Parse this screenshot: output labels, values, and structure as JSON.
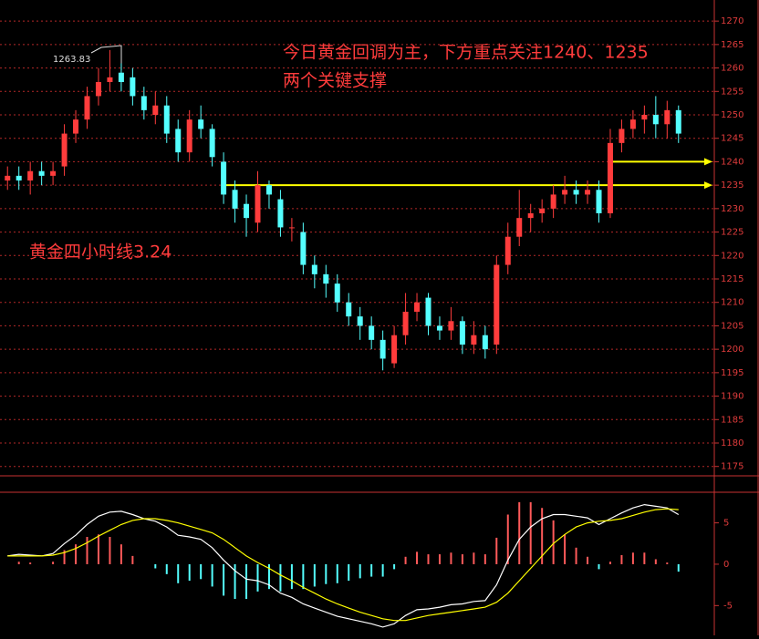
{
  "chart_data": [
    {
      "type": "candlestick",
      "title": "黄金四小时线3.24",
      "annotations": [
        "今日黄金回调为主，下方重点关注1240、1235",
        "两个关键支撑",
        "1263.83"
      ],
      "open": [
        1236,
        1237,
        1236,
        1238,
        1237,
        1239,
        1246,
        1249,
        1254,
        1257,
        1259,
        1258,
        1254,
        1250,
        1252,
        1247,
        1242,
        1249,
        1247,
        1240,
        1234,
        1231,
        1227,
        1235,
        1232,
        1226,
        1225,
        1218,
        1216,
        1214,
        1210,
        1207,
        1205,
        1202,
        1197,
        1203,
        1208,
        1211,
        1205,
        1204,
        1206,
        1201,
        1203,
        1201,
        1218,
        1224,
        1228,
        1229,
        1230,
        1233,
        1234,
        1233,
        1234,
        1229,
        1244,
        1247,
        1249,
        1250,
        1248,
        1251
      ],
      "high": [
        1239,
        1239,
        1240,
        1240,
        1240,
        1248,
        1251,
        1256,
        1260,
        1263.83,
        1261,
        1260,
        1256,
        1255,
        1254,
        1249,
        1251,
        1252,
        1248,
        1242,
        1236,
        1233,
        1238,
        1236,
        1234,
        1228,
        1227,
        1220,
        1218,
        1216,
        1212,
        1209,
        1207,
        1204,
        1205,
        1212,
        1212,
        1212,
        1207,
        1209,
        1207,
        1206,
        1205,
        1220,
        1227,
        1234,
        1231,
        1232,
        1235,
        1237,
        1236,
        1236,
        1236,
        1247,
        1249,
        1251,
        1252,
        1254,
        1253,
        1252
      ],
      "low": [
        1234,
        1234,
        1233,
        1235,
        1235,
        1237,
        1244,
        1247,
        1252,
        1255,
        1255,
        1252,
        1249,
        1248,
        1244,
        1240,
        1240,
        1245,
        1239,
        1231,
        1227,
        1224,
        1225,
        1230,
        1224,
        1223,
        1216,
        1213,
        1211,
        1208,
        1205,
        1202,
        1200,
        1195.5,
        1196,
        1201,
        1206,
        1203,
        1202,
        1202,
        1199,
        1199,
        1198,
        1199,
        1216,
        1222,
        1225,
        1227,
        1228,
        1231,
        1231,
        1231,
        1227,
        1228,
        1242,
        1245,
        1246,
        1245,
        1245,
        1244
      ],
      "close": [
        1237,
        1236,
        1238,
        1237,
        1238,
        1246,
        1249,
        1254,
        1257,
        1258,
        1257,
        1254,
        1251,
        1252,
        1246,
        1242,
        1249,
        1247,
        1241,
        1233,
        1230,
        1228,
        1235,
        1233,
        1226,
        1226,
        1218,
        1216,
        1214,
        1210,
        1207,
        1205,
        1202,
        1198,
        1203,
        1208,
        1210,
        1205,
        1204,
        1206,
        1201,
        1203,
        1200,
        1218,
        1224,
        1228,
        1229,
        1230,
        1233,
        1234,
        1233,
        1234,
        1229,
        1244,
        1247,
        1249,
        1250,
        1248,
        1251,
        1246
      ],
      "up_color": "#ff3c3c",
      "down_color": "#54ffff",
      "levels": [
        1240,
        1235
      ],
      "level_color": "#ffff00",
      "ylim": [
        1173,
        1274.5
      ],
      "yticks": [
        1175,
        1180,
        1185,
        1190,
        1195,
        1200,
        1205,
        1210,
        1215,
        1220,
        1225,
        1230,
        1235,
        1240,
        1245,
        1250,
        1255,
        1260,
        1265,
        1270
      ],
      "grid": true
    },
    {
      "type": "macd",
      "series": [
        {
          "name": "DIF",
          "color": "#ffffff",
          "values": [
            1,
            1.2,
            1.1,
            1,
            1.3,
            2.5,
            3.5,
            4.8,
            5.8,
            6.3,
            6.4,
            6,
            5.5,
            5.2,
            4.5,
            3.5,
            3.3,
            3,
            2,
            0.5,
            -0.8,
            -1.8,
            -2,
            -2.5,
            -3.5,
            -4,
            -4.8,
            -5.3,
            -5.8,
            -6.3,
            -6.6,
            -6.9,
            -7.2,
            -7.6,
            -7.2,
            -6.2,
            -5.5,
            -5.4,
            -5.2,
            -4.9,
            -4.8,
            -4.5,
            -4.4,
            -2.5,
            0.5,
            3,
            4.5,
            5.5,
            6,
            6,
            5.8,
            5.6,
            4.8,
            5.5,
            6.2,
            6.8,
            7.2,
            7,
            6.8,
            6
          ]
        },
        {
          "name": "DEA",
          "color": "#ffff00",
          "values": [
            1,
            1,
            1,
            1,
            1.1,
            1.4,
            1.9,
            2.6,
            3.4,
            4.1,
            4.8,
            5.3,
            5.5,
            5.5,
            5.3,
            5,
            4.6,
            4.2,
            3.8,
            3,
            2,
            1,
            0.2,
            -0.5,
            -1.3,
            -2,
            -2.8,
            -3.5,
            -4.2,
            -4.8,
            -5.3,
            -5.8,
            -6.2,
            -6.6,
            -6.8,
            -6.8,
            -6.5,
            -6.2,
            -6,
            -5.8,
            -5.6,
            -5.4,
            -5.2,
            -4.6,
            -3.5,
            -2,
            -0.5,
            1,
            2.5,
            3.6,
            4.5,
            5,
            5.2,
            5.3,
            5.5,
            5.9,
            6.3,
            6.6,
            6.7,
            6.6
          ]
        }
      ],
      "histogram": [
        0,
        0.3,
        0.2,
        0,
        0.3,
        1.7,
        2.4,
        3.3,
        3.6,
        3.3,
        2.4,
        1,
        0,
        -0.5,
        -1.2,
        -2.3,
        -2,
        -1.8,
        -2.7,
        -3.8,
        -4.2,
        -4.2,
        -3.3,
        -3,
        -3.3,
        -3,
        -3,
        -2.7,
        -2.4,
        -2.3,
        -2,
        -1.7,
        -1.5,
        -1.5,
        -0.6,
        0.9,
        1.5,
        1.2,
        1.2,
        1.4,
        1.2,
        1.4,
        1.2,
        3.2,
        6,
        7.5,
        7.5,
        6.8,
        5.3,
        3.6,
        2,
        0.9,
        -0.6,
        0.3,
        1.1,
        1.4,
        1.4,
        0.6,
        0.2,
        -0.9
      ],
      "up_color": "#ff5a5a",
      "down_color": "#54ffff",
      "ylim": [
        -8.6,
        8.7
      ],
      "yticks": [
        -5,
        0,
        5
      ]
    }
  ]
}
